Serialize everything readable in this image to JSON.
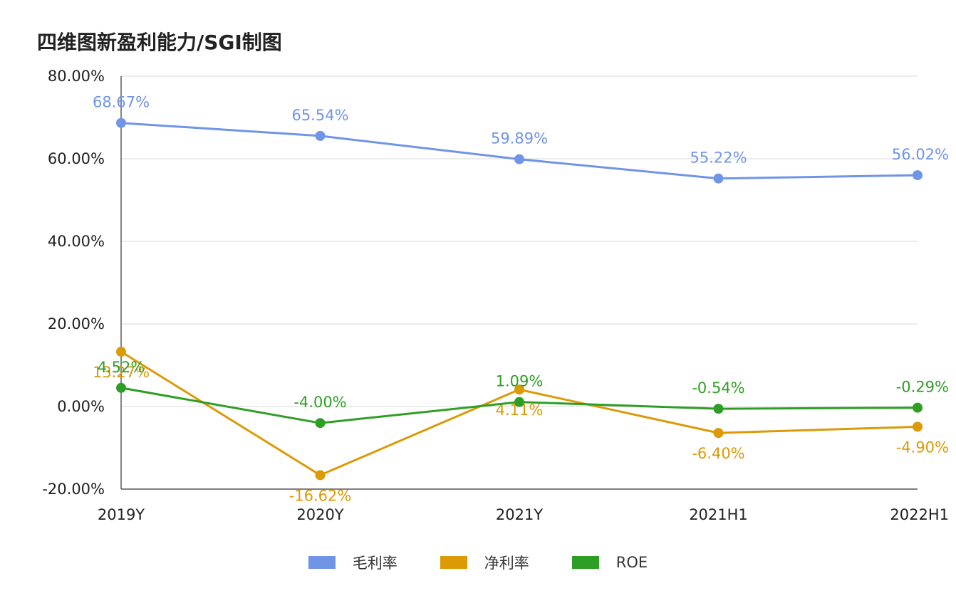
{
  "chart_data": {
    "type": "line",
    "title": "四维图新盈利能力/SGI制图",
    "categories": [
      "2019Y",
      "2020Y",
      "2021Y",
      "2021H1",
      "2022H1"
    ],
    "ylim": [
      -20,
      80
    ],
    "yticks": [
      -20,
      0,
      20,
      40,
      60,
      80
    ],
    "ytick_labels": [
      "-20.00%",
      "0.00%",
      "20.00%",
      "40.00%",
      "60.00%",
      "80.00%"
    ],
    "xlabel": "",
    "ylabel": "",
    "grid": true,
    "legend_position": "bottom-center",
    "series": [
      {
        "name": "毛利率",
        "color": "#7094E6",
        "values": [
          68.67,
          65.54,
          59.89,
          55.22,
          56.02
        ],
        "labels": [
          "68.67%",
          "65.54%",
          "59.89%",
          "55.22%",
          "56.02%"
        ]
      },
      {
        "name": "净利率",
        "color": "#DB9A06",
        "values": [
          13.27,
          -16.62,
          4.11,
          -6.4,
          -4.9
        ],
        "labels": [
          "13.27%",
          "-16.62%",
          "4.11%",
          "-6.40%",
          "-4.90%"
        ]
      },
      {
        "name": "ROE",
        "color": "#2E9E24",
        "values": [
          4.52,
          -4.0,
          1.09,
          -0.54,
          -0.29
        ],
        "labels": [
          "4.52%",
          "-4.00%",
          "1.09%",
          "-0.54%",
          "-0.29%"
        ]
      }
    ]
  }
}
